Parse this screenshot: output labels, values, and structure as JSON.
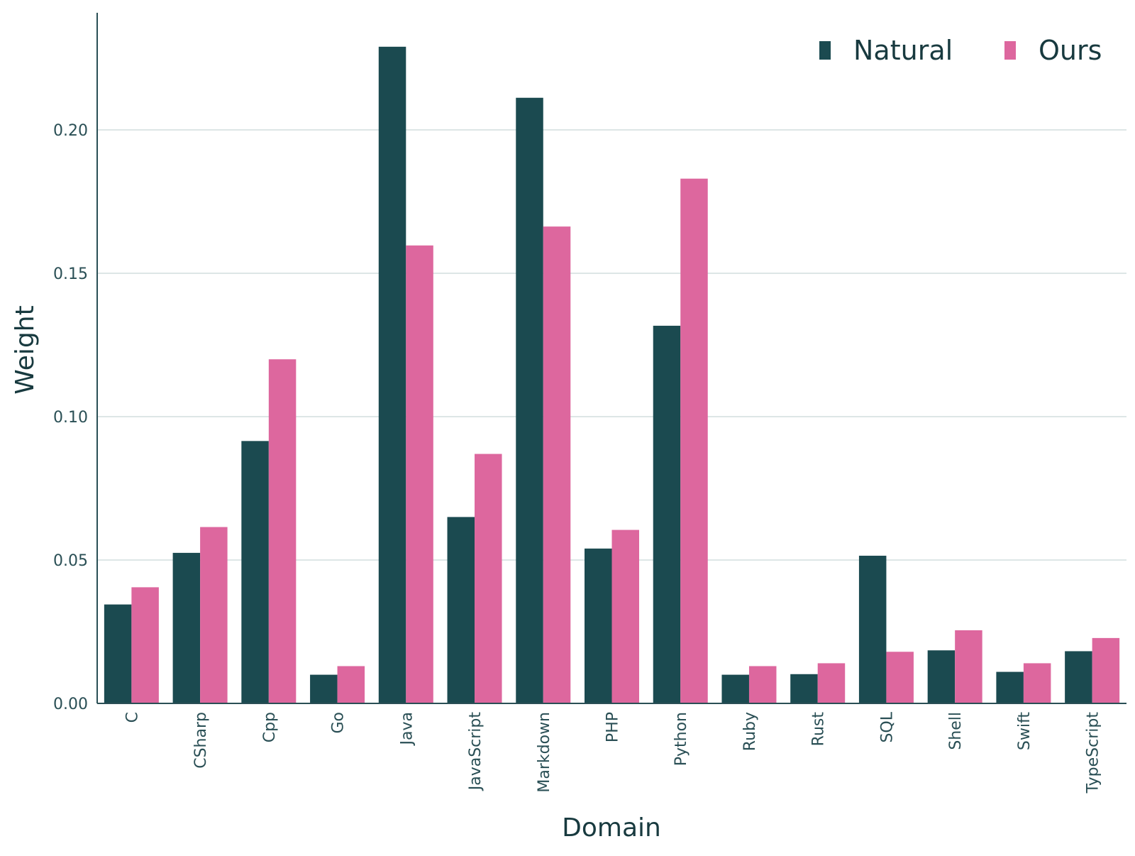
{
  "chart_data": {
    "type": "bar",
    "title": "",
    "xlabel": "Domain",
    "ylabel": "Weight",
    "categories": [
      "C",
      "CSharp",
      "Cpp",
      "Go",
      "Java",
      "JavaScript",
      "Markdown",
      "PHP",
      "Python",
      "Ruby",
      "Rust",
      "SQL",
      "Shell",
      "Swift",
      "TypeScript"
    ],
    "series": [
      {
        "name": "Natural",
        "color": "#1b4a50",
        "values": [
          0.0345,
          0.0525,
          0.0915,
          0.01,
          0.229,
          0.065,
          0.2112,
          0.054,
          0.1317,
          0.01,
          0.0102,
          0.0515,
          0.0185,
          0.011,
          0.0182
        ]
      },
      {
        "name": "Ours",
        "color": "#dd679e",
        "values": [
          0.0405,
          0.0615,
          0.12,
          0.013,
          0.1597,
          0.087,
          0.1663,
          0.0605,
          0.183,
          0.013,
          0.014,
          0.018,
          0.0255,
          0.014,
          0.0228
        ]
      }
    ],
    "ylim": [
      0,
      0.24
    ],
    "yticks": [
      "0.00",
      "0.05",
      "0.10",
      "0.15",
      "0.20"
    ],
    "grid": "horizontal",
    "legend": "top-right"
  }
}
